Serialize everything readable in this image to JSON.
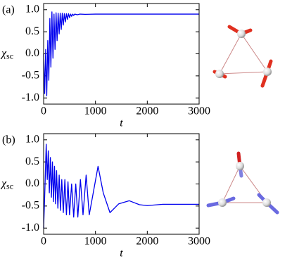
{
  "chart_data": [
    {
      "type": "line",
      "panel_label": "(a)",
      "xlabel": "t",
      "ylabel": "χ",
      "ylabel_sub": "sc",
      "xlim": [
        0,
        3000
      ],
      "ylim": [
        -1.14,
        1.14
      ],
      "xticks": [
        0,
        1000,
        2000,
        3000
      ],
      "yticks": [
        {
          "value": 1.0,
          "label": "1.0"
        },
        0.5,
        {
          "value": 0.0,
          "label": "0.0"
        },
        -0.5,
        {
          "value": -1.0,
          "label": "-1.0"
        }
      ],
      "series": [
        {
          "color": "#0000ee",
          "x": [
            0,
            20,
            40,
            60,
            80,
            100,
            120,
            140,
            160,
            180,
            200,
            220,
            240,
            260,
            280,
            300,
            320,
            340,
            360,
            380,
            400,
            420,
            440,
            460,
            480,
            500,
            520,
            540,
            560,
            580,
            600,
            650,
            700,
            800,
            1000,
            3000
          ],
          "values": [
            0,
            -0.9,
            0.1,
            -0.95,
            0.3,
            -0.6,
            0.8,
            -0.3,
            0.95,
            -0.1,
            0.9,
            0.1,
            0.93,
            0.3,
            0.92,
            0.45,
            0.92,
            0.55,
            0.92,
            0.65,
            0.91,
            0.72,
            0.91,
            0.78,
            0.91,
            0.82,
            0.9,
            0.85,
            0.9,
            0.87,
            0.9,
            0.885,
            0.9,
            0.895,
            0.9,
            0.9
          ]
        }
      ]
    },
    {
      "type": "line",
      "panel_label": "(b)",
      "xlabel": "t",
      "ylabel": "χ",
      "ylabel_sub": "sc",
      "xlim": [
        0,
        3000
      ],
      "ylim": [
        -1.14,
        1.14
      ],
      "xticks": [
        0,
        1000,
        2000,
        3000
      ],
      "yticks": [
        {
          "value": 1.0,
          "label": "1.0"
        },
        0.5,
        {
          "value": 0.0,
          "label": "0.0"
        },
        -0.5,
        {
          "value": -1.0,
          "label": "-1.0"
        }
      ],
      "series": [
        {
          "color": "#0000ee",
          "x": [
            0,
            20,
            50,
            70,
            90,
            110,
            130,
            150,
            170,
            190,
            210,
            230,
            250,
            275,
            300,
            325,
            350,
            380,
            410,
            440,
            470,
            500,
            540,
            580,
            620,
            660,
            710,
            760,
            820,
            880,
            1050,
            1150,
            1280,
            1450,
            1650,
            1850,
            2000,
            2300,
            3000
          ],
          "values": [
            -1.0,
            -0.3,
            0.9,
            0.1,
            0.75,
            -0.2,
            0.6,
            -0.3,
            0.5,
            -0.4,
            0.4,
            -0.45,
            0.3,
            -0.55,
            0.2,
            -0.6,
            0.1,
            -0.65,
            0.1,
            -0.7,
            0.05,
            -0.7,
            0.0,
            -0.75,
            0.0,
            -0.75,
            0.1,
            -0.7,
            0.2,
            -0.7,
            0.4,
            -0.2,
            -0.65,
            -0.45,
            -0.38,
            -0.47,
            -0.49,
            -0.46,
            -0.46
          ]
        }
      ]
    }
  ]
}
